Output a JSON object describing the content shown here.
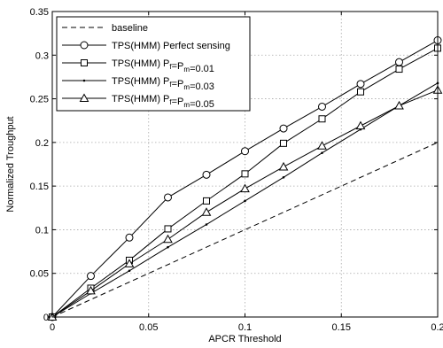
{
  "chart_data": {
    "type": "line",
    "xlabel": "APCR Threshold",
    "ylabel": "Normalized Troughput",
    "xlim": [
      0,
      0.2
    ],
    "ylim": [
      0,
      0.35
    ],
    "xticks": [
      0,
      0.05,
      0.1,
      0.15,
      0.2
    ],
    "xtick_labels": [
      "0",
      "0.05",
      "0.1",
      "0.15",
      "0.2"
    ],
    "yticks": [
      0,
      0.05,
      0.1,
      0.15,
      0.2,
      0.25,
      0.3,
      0.35
    ],
    "ytick_labels": [
      "0",
      "0.05",
      "0.1",
      "0.15",
      "0.2",
      "0.25",
      "0.3",
      "0.35"
    ],
    "grid": true,
    "legend_position": "top-left",
    "series": [
      {
        "name": "baseline",
        "line_style": "dashed",
        "marker": "none",
        "x": [
          0,
          0.2
        ],
        "y": [
          0,
          0.2
        ]
      },
      {
        "name": "TPS(HMM) Perfect sensing",
        "line_style": "solid",
        "marker": "circle",
        "x": [
          0,
          0.02,
          0.04,
          0.06,
          0.08,
          0.1,
          0.12,
          0.14,
          0.16,
          0.18,
          0.2
        ],
        "y": [
          0,
          0.047,
          0.091,
          0.137,
          0.163,
          0.19,
          0.216,
          0.241,
          0.267,
          0.292,
          0.317
        ]
      },
      {
        "name": "TPS(HMM) Pf=Pm=0.01",
        "legend_parts": [
          {
            "text": "TPS(HMM) P",
            "sub": ""
          },
          {
            "text": "",
            "sub": "f"
          },
          {
            "text": "=P",
            "sub": ""
          },
          {
            "text": "",
            "sub": "m"
          },
          {
            "text": "=0.01",
            "sub": ""
          }
        ],
        "line_style": "solid",
        "marker": "square",
        "x": [
          0,
          0.02,
          0.04,
          0.06,
          0.08,
          0.1,
          0.12,
          0.14,
          0.16,
          0.18,
          0.2
        ],
        "y": [
          0,
          0.033,
          0.065,
          0.101,
          0.133,
          0.164,
          0.199,
          0.227,
          0.258,
          0.284,
          0.308
        ]
      },
      {
        "name": "TPS(HMM) Pf=Pm=0.03",
        "legend_parts": [
          {
            "text": "TPS(HMM) P",
            "sub": ""
          },
          {
            "text": "",
            "sub": "f"
          },
          {
            "text": "=P",
            "sub": ""
          },
          {
            "text": "",
            "sub": "m"
          },
          {
            "text": "=0.03",
            "sub": ""
          }
        ],
        "line_style": "solid",
        "marker": "dot",
        "x": [
          0,
          0.02,
          0.04,
          0.06,
          0.08,
          0.1,
          0.12,
          0.14,
          0.16,
          0.18,
          0.2
        ],
        "y": [
          0,
          0.027,
          0.053,
          0.08,
          0.106,
          0.133,
          0.16,
          0.188,
          0.215,
          0.242,
          0.268
        ]
      },
      {
        "name": "TPS(HMM) Pf=Pm=0.05",
        "legend_parts": [
          {
            "text": "TPS(HMM) P",
            "sub": ""
          },
          {
            "text": "",
            "sub": "f"
          },
          {
            "text": "=P",
            "sub": ""
          },
          {
            "text": "",
            "sub": "m"
          },
          {
            "text": "=0.05",
            "sub": ""
          }
        ],
        "line_style": "solid",
        "marker": "triangle",
        "x": [
          0,
          0.02,
          0.04,
          0.06,
          0.08,
          0.1,
          0.12,
          0.14,
          0.16,
          0.18,
          0.2
        ],
        "y": [
          0,
          0.03,
          0.061,
          0.089,
          0.12,
          0.147,
          0.172,
          0.196,
          0.219,
          0.242,
          0.26
        ]
      }
    ]
  }
}
